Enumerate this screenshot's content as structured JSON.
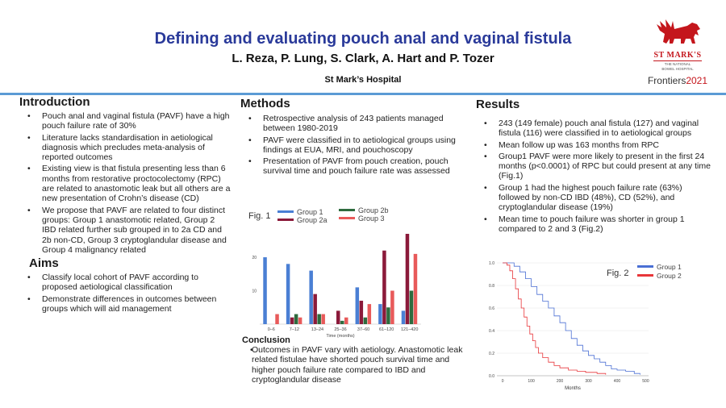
{
  "poster": {
    "title": "Defining and evaluating pouch anal and vaginal fistula",
    "authors": "L. Reza, P. Lung, S. Clark, A. Hart and P. Tozer",
    "institution": "St Mark’s Hospital"
  },
  "logo": {
    "name": "ST MARK'S",
    "subtitle_line1": "THE NATIONAL",
    "subtitle_line2": "BOWEL HOSPITAL",
    "frontiers": "Frontiers",
    "year": "2021",
    "accent_color": "#c4161c"
  },
  "introduction": {
    "heading": "Introduction",
    "bullets": [
      "Pouch anal and vaginal fistula (PAVF) have a high pouch failure rate of 30%",
      "Literature lacks standardisation in aetiological diagnosis which precludes meta-analysis of reported outcomes",
      "Existing view is that fistula presenting less than 6 months from restorative proctocolectomy (RPC) are related to anastomotic leak but all others are a new presentation of Crohn’s disease (CD)",
      "We propose that PAVF are related to four distinct groups: Group 1 anastomotic related, Group 2 IBD related further sub grouped in to 2a CD and 2b non-CD, Group 3 cryptoglandular disease and Group 4 malignancy related"
    ]
  },
  "aims": {
    "heading": "Aims",
    "bullets": [
      "Classify local cohort of PAVF according to proposed aetiological classification",
      "Demonstrate differences in outcomes between groups which will aid management"
    ]
  },
  "methods": {
    "heading": "Methods",
    "bullets": [
      "Retrospective analysis of 243 patients managed between 1980-2019",
      "PAVF were classified in to aetiological groups using findings at EUA, MRI, and pouchoscopy",
      "Presentation of PAVF from pouch creation, pouch survival time and pouch failure rate was assessed"
    ]
  },
  "conclusion": {
    "heading": "Conclusion",
    "bullets": [
      "Outcomes in PAVF vary with aetiology. Anastomotic leak related fistulae have shorted pouch survival time and higher pouch failure rate compared to IBD and cryptoglandular disease"
    ]
  },
  "results": {
    "heading": "Results",
    "bullets": [
      "243 (149 female) pouch anal fistula (127) and vaginal fistula (116) were classified in to aetiological groups",
      "Mean follow up was 163 months from RPC",
      "Group1 PAVF were more likely to present in the first 24 months (p<0.0001) of RPC but could present at any time (Fig.1)",
      "Group 1 had the highest pouch failure rate (63%) followed by non-CD IBD (48%), CD (52%), and cryptoglandular disease (19%)",
      "Mean time to pouch failure was shorter in group 1 compared to 2 and 3 (Fig.2)"
    ]
  },
  "chart_data": [
    {
      "type": "bar",
      "label": "Fig. 1",
      "xlabel": "Time (months)",
      "categories": [
        "0–6",
        "7–12",
        "13–24",
        "25–36",
        "37–60",
        "61–120",
        "121–420"
      ],
      "yticks": [
        10,
        20
      ],
      "ylim": [
        0,
        27
      ],
      "legend_position": "top",
      "series": [
        {
          "name": "Group 1",
          "color": "#4a7fd4",
          "values": [
            20,
            18,
            16,
            0,
            11,
            6,
            4
          ]
        },
        {
          "name": "Group 2a",
          "color": "#8b1a3a",
          "values": [
            0,
            2,
            9,
            4,
            7,
            22,
            27
          ]
        },
        {
          "name": "Group 2b",
          "color": "#2e6b3e",
          "values": [
            0,
            3,
            3,
            1,
            2,
            5,
            10
          ]
        },
        {
          "name": "Group 3",
          "color": "#e85a5a",
          "values": [
            3,
            2,
            3,
            2,
            6,
            10,
            21
          ]
        }
      ]
    },
    {
      "type": "line",
      "label": "Fig. 2",
      "xlabel": "Months",
      "xticks": [
        0,
        100,
        200,
        300,
        400,
        500
      ],
      "yticks": [
        "0.0",
        "0.2",
        "0.4",
        "0.6",
        "0.8",
        "1.0"
      ],
      "xlim": [
        -20,
        510
      ],
      "ylim": [
        0,
        1
      ],
      "legend_position": "top-right",
      "series": [
        {
          "name": "Group 1",
          "color": "#4a6fd4",
          "points": [
            [
              0,
              1.0
            ],
            [
              20,
              1.0
            ],
            [
              40,
              0.97
            ],
            [
              60,
              0.92
            ],
            [
              80,
              0.86
            ],
            [
              100,
              0.79
            ],
            [
              120,
              0.72
            ],
            [
              140,
              0.66
            ],
            [
              160,
              0.6
            ],
            [
              180,
              0.53
            ],
            [
              200,
              0.47
            ],
            [
              220,
              0.4
            ],
            [
              240,
              0.33
            ],
            [
              260,
              0.27
            ],
            [
              280,
              0.22
            ],
            [
              300,
              0.18
            ],
            [
              320,
              0.15
            ],
            [
              340,
              0.12
            ],
            [
              360,
              0.09
            ],
            [
              380,
              0.06
            ],
            [
              400,
              0.05
            ],
            [
              430,
              0.04
            ],
            [
              460,
              0.02
            ],
            [
              480,
              0.01
            ]
          ]
        },
        {
          "name": "Group 2",
          "color": "#e8363a",
          "points": [
            [
              0,
              1.0
            ],
            [
              15,
              0.98
            ],
            [
              25,
              0.93
            ],
            [
              35,
              0.86
            ],
            [
              45,
              0.77
            ],
            [
              55,
              0.68
            ],
            [
              65,
              0.6
            ],
            [
              75,
              0.52
            ],
            [
              85,
              0.44
            ],
            [
              95,
              0.37
            ],
            [
              105,
              0.31
            ],
            [
              115,
              0.25
            ],
            [
              125,
              0.2
            ],
            [
              140,
              0.16
            ],
            [
              160,
              0.12
            ],
            [
              180,
              0.09
            ],
            [
              200,
              0.07
            ],
            [
              230,
              0.05
            ],
            [
              260,
              0.04
            ],
            [
              290,
              0.03
            ],
            [
              330,
              0.02
            ],
            [
              360,
              0.01
            ]
          ]
        }
      ]
    }
  ]
}
